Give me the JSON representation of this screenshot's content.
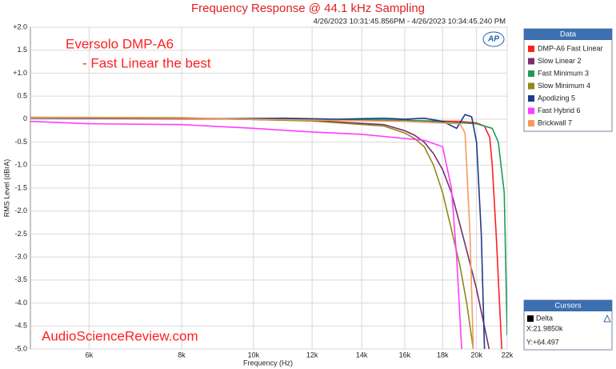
{
  "chart_data": {
    "type": "line",
    "title": "Frequency Response @ 44.1 kHz Sampling",
    "subtitle": "4/26/2023 10:31:45.856PM - 4/26/2023 10:34:45.240 PM",
    "x_label": "Frequency (Hz)",
    "y_label": "RMS Level (dBrA)",
    "annotations": [
      "Eversolo DMP-A6",
      "- Fast Linear the best",
      "AudioScienceReview.com"
    ],
    "logo": "AP",
    "legend_title": "Data",
    "legend_position": "right",
    "cursors": {
      "title": "Cursors",
      "entry": "Delta",
      "x": "X:21.9850k",
      "y": "Y:+64.497"
    },
    "xscale": "log",
    "grid": true,
    "xlim": [
      5000,
      22000
    ],
    "ylim": [
      -5,
      2
    ],
    "xticks": [
      {
        "value": 6000,
        "label": "6k"
      },
      {
        "value": 8000,
        "label": "8k"
      },
      {
        "value": 10000,
        "label": "10k"
      },
      {
        "value": 12000,
        "label": "12k"
      },
      {
        "value": 14000,
        "label": "14k"
      },
      {
        "value": 16000,
        "label": "16k"
      },
      {
        "value": 18000,
        "label": "18k"
      },
      {
        "value": 20000,
        "label": "20k"
      },
      {
        "value": 22000,
        "label": "22k"
      }
    ],
    "yticks": [
      {
        "value": 2,
        "label": "+2.0"
      },
      1.5,
      {
        "value": 1,
        "label": "+1.0"
      },
      0.5,
      0,
      -0.5,
      {
        "value": -1,
        "label": "-1.0"
      },
      -1.5,
      {
        "value": -2,
        "label": "-2.0"
      },
      -2.5,
      {
        "value": -3,
        "label": "-3.0"
      },
      -3.5,
      {
        "value": -4,
        "label": "-4.0"
      },
      -4.5,
      {
        "value": -5,
        "label": "-5.0"
      }
    ],
    "series": [
      {
        "name": "DMP-A6 Fast Linear",
        "color": "#ff2020",
        "x": [
          5000,
          7000,
          10000,
          13000,
          16000,
          19000,
          20000,
          20500,
          20840,
          21000,
          21260,
          21630
        ],
        "values": [
          0.02,
          0.01,
          0,
          -0.01,
          -0.03,
          -0.05,
          -0.08,
          -0.15,
          -0.4,
          -1.0,
          -2.5,
          -5
        ]
      },
      {
        "name": "Slow Linear 2",
        "color": "#7b2d6e",
        "x": [
          5000,
          8000,
          12000,
          15000,
          16000,
          16500,
          17000,
          17500,
          18000,
          18500,
          19000,
          19500,
          20000,
          20800
        ],
        "values": [
          0.03,
          0.02,
          -0.03,
          -0.12,
          -0.25,
          -0.35,
          -0.5,
          -0.75,
          -1.1,
          -1.6,
          -2.3,
          -3.0,
          -3.7,
          -5
        ]
      },
      {
        "name": "Fast Minimum 3",
        "color": "#1f9a5a",
        "x": [
          5000,
          8000,
          12000,
          16000,
          19000,
          20000,
          21000,
          21400,
          21800,
          22000
        ],
        "values": [
          0.02,
          0.02,
          0,
          -0.02,
          -0.08,
          -0.1,
          -0.2,
          -0.5,
          -1.6,
          -4.7
        ]
      },
      {
        "name": "Slow Minimum 4",
        "color": "#8e8a18",
        "x": [
          5000,
          8000,
          12000,
          15000,
          16000,
          16500,
          17000,
          17500,
          18000,
          18500,
          19000,
          19400,
          19800
        ],
        "values": [
          0.04,
          0.03,
          -0.04,
          -0.15,
          -0.3,
          -0.42,
          -0.6,
          -1.0,
          -1.6,
          -2.4,
          -3.2,
          -4.0,
          -5
        ]
      },
      {
        "name": "Apodizing 5",
        "color": "#1f3a8a",
        "x": [
          5000,
          9000,
          11000,
          13000,
          15000,
          16000,
          17000,
          18000,
          18800,
          19300,
          19700,
          20000,
          20300,
          20500
        ],
        "values": [
          0.02,
          0.01,
          0.02,
          0.0,
          0.02,
          0.0,
          0.02,
          -0.05,
          -0.2,
          0.1,
          0.05,
          -0.5,
          -2.5,
          -5
        ]
      },
      {
        "name": "Fast Hybrid 6",
        "color": "#ff3cff",
        "x": [
          5000,
          6000,
          8000,
          10000,
          12000,
          14000,
          16000,
          17000,
          18000,
          18500,
          18800,
          19100
        ],
        "values": [
          -0.05,
          -0.1,
          -0.12,
          -0.2,
          -0.28,
          -0.33,
          -0.42,
          -0.46,
          -0.6,
          -1.5,
          -3,
          -5
        ]
      },
      {
        "name": "Brickwall 7",
        "color": "#f79a5a",
        "x": [
          5000,
          8000,
          12000,
          16000,
          19000,
          19300,
          19600,
          19800
        ],
        "values": [
          0.03,
          0.02,
          -0.02,
          -0.05,
          -0.1,
          -0.3,
          -2.5,
          -5
        ]
      }
    ]
  }
}
